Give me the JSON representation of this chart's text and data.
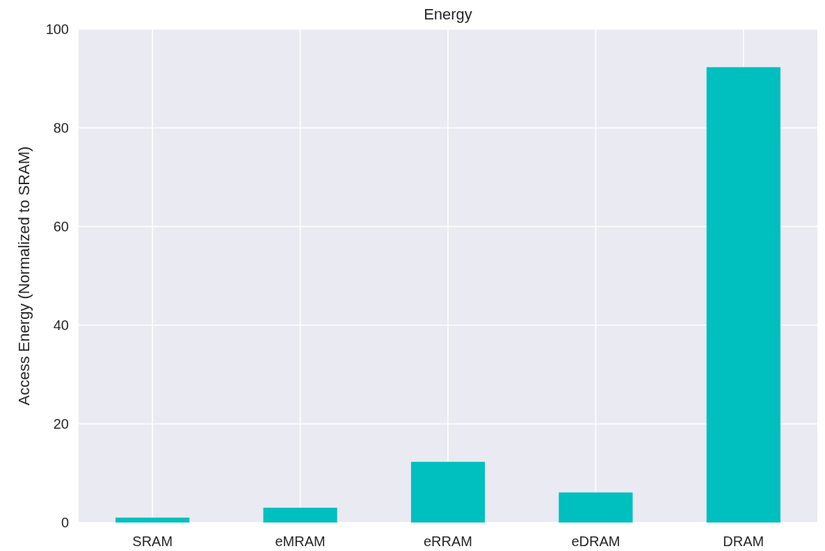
{
  "chart_data": {
    "type": "bar",
    "title": "Energy",
    "ylabel": "Access Energy (Normalized to SRAM)",
    "categories": [
      "SRAM",
      "eMRAM",
      "eRRAM",
      "eDRAM",
      "DRAM"
    ],
    "values": [
      1,
      3,
      12.3,
      6.1,
      92.3
    ],
    "color": "#00bfbf",
    "ylim": [
      0,
      100
    ],
    "yticks": [
      0,
      20,
      40,
      60,
      80,
      100
    ],
    "grid": true
  }
}
